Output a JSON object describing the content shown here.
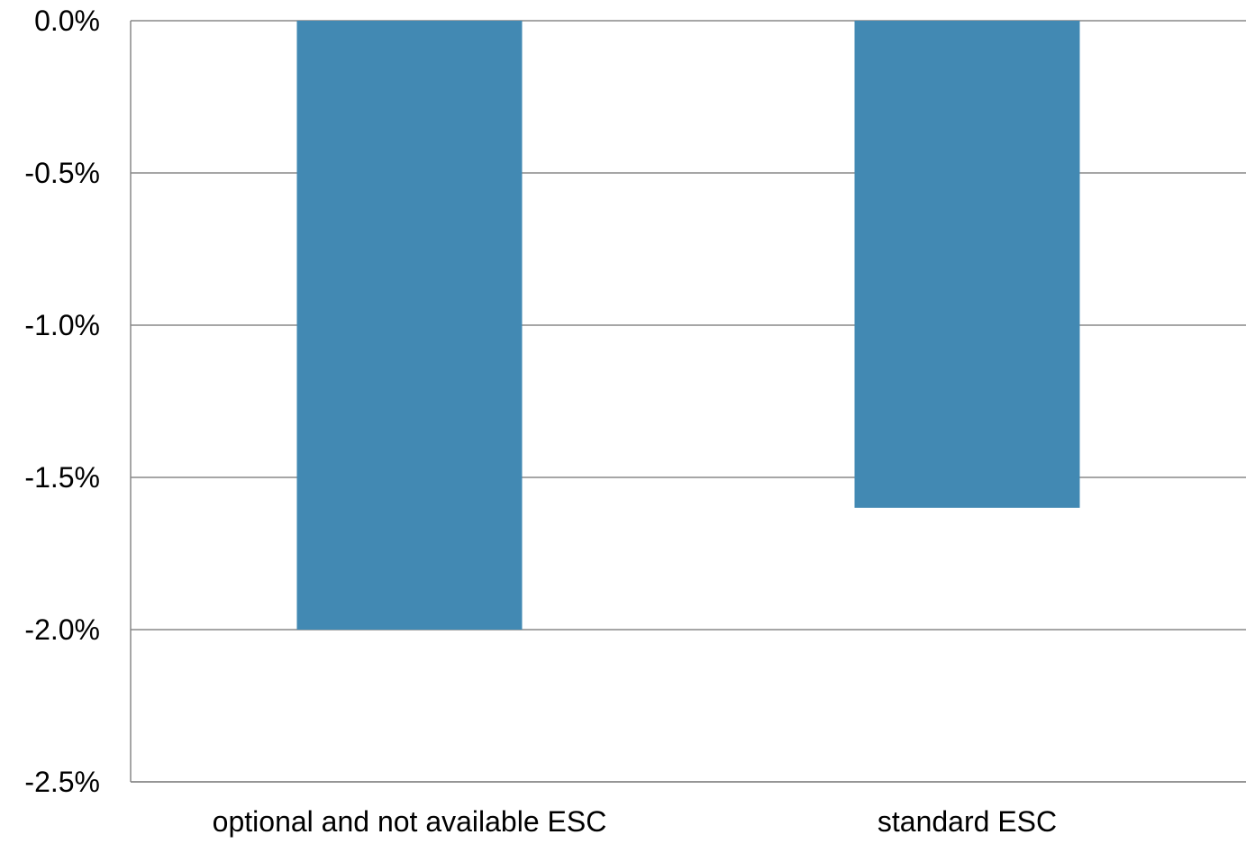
{
  "chart_data": {
    "type": "bar",
    "categories": [
      "optional and not available ESC",
      "standard ESC"
    ],
    "values": [
      -2.0,
      -1.6
    ],
    "unit": "%",
    "ylim": [
      -2.5,
      0.0
    ],
    "yticks": [
      0.0,
      -0.5,
      -1.0,
      -1.5,
      -2.0,
      -2.5
    ],
    "ytick_labels": [
      "0.0%",
      "-0.5%",
      "-1.0%",
      "-1.5%",
      "-2.0%",
      "-2.5%"
    ],
    "title": "",
    "xlabel": "",
    "ylabel": "",
    "grid": true,
    "legend": "none",
    "colors": {
      "bar": "#4289b3",
      "grid": "#888888",
      "axis": "#888888",
      "text": "#000000"
    }
  }
}
